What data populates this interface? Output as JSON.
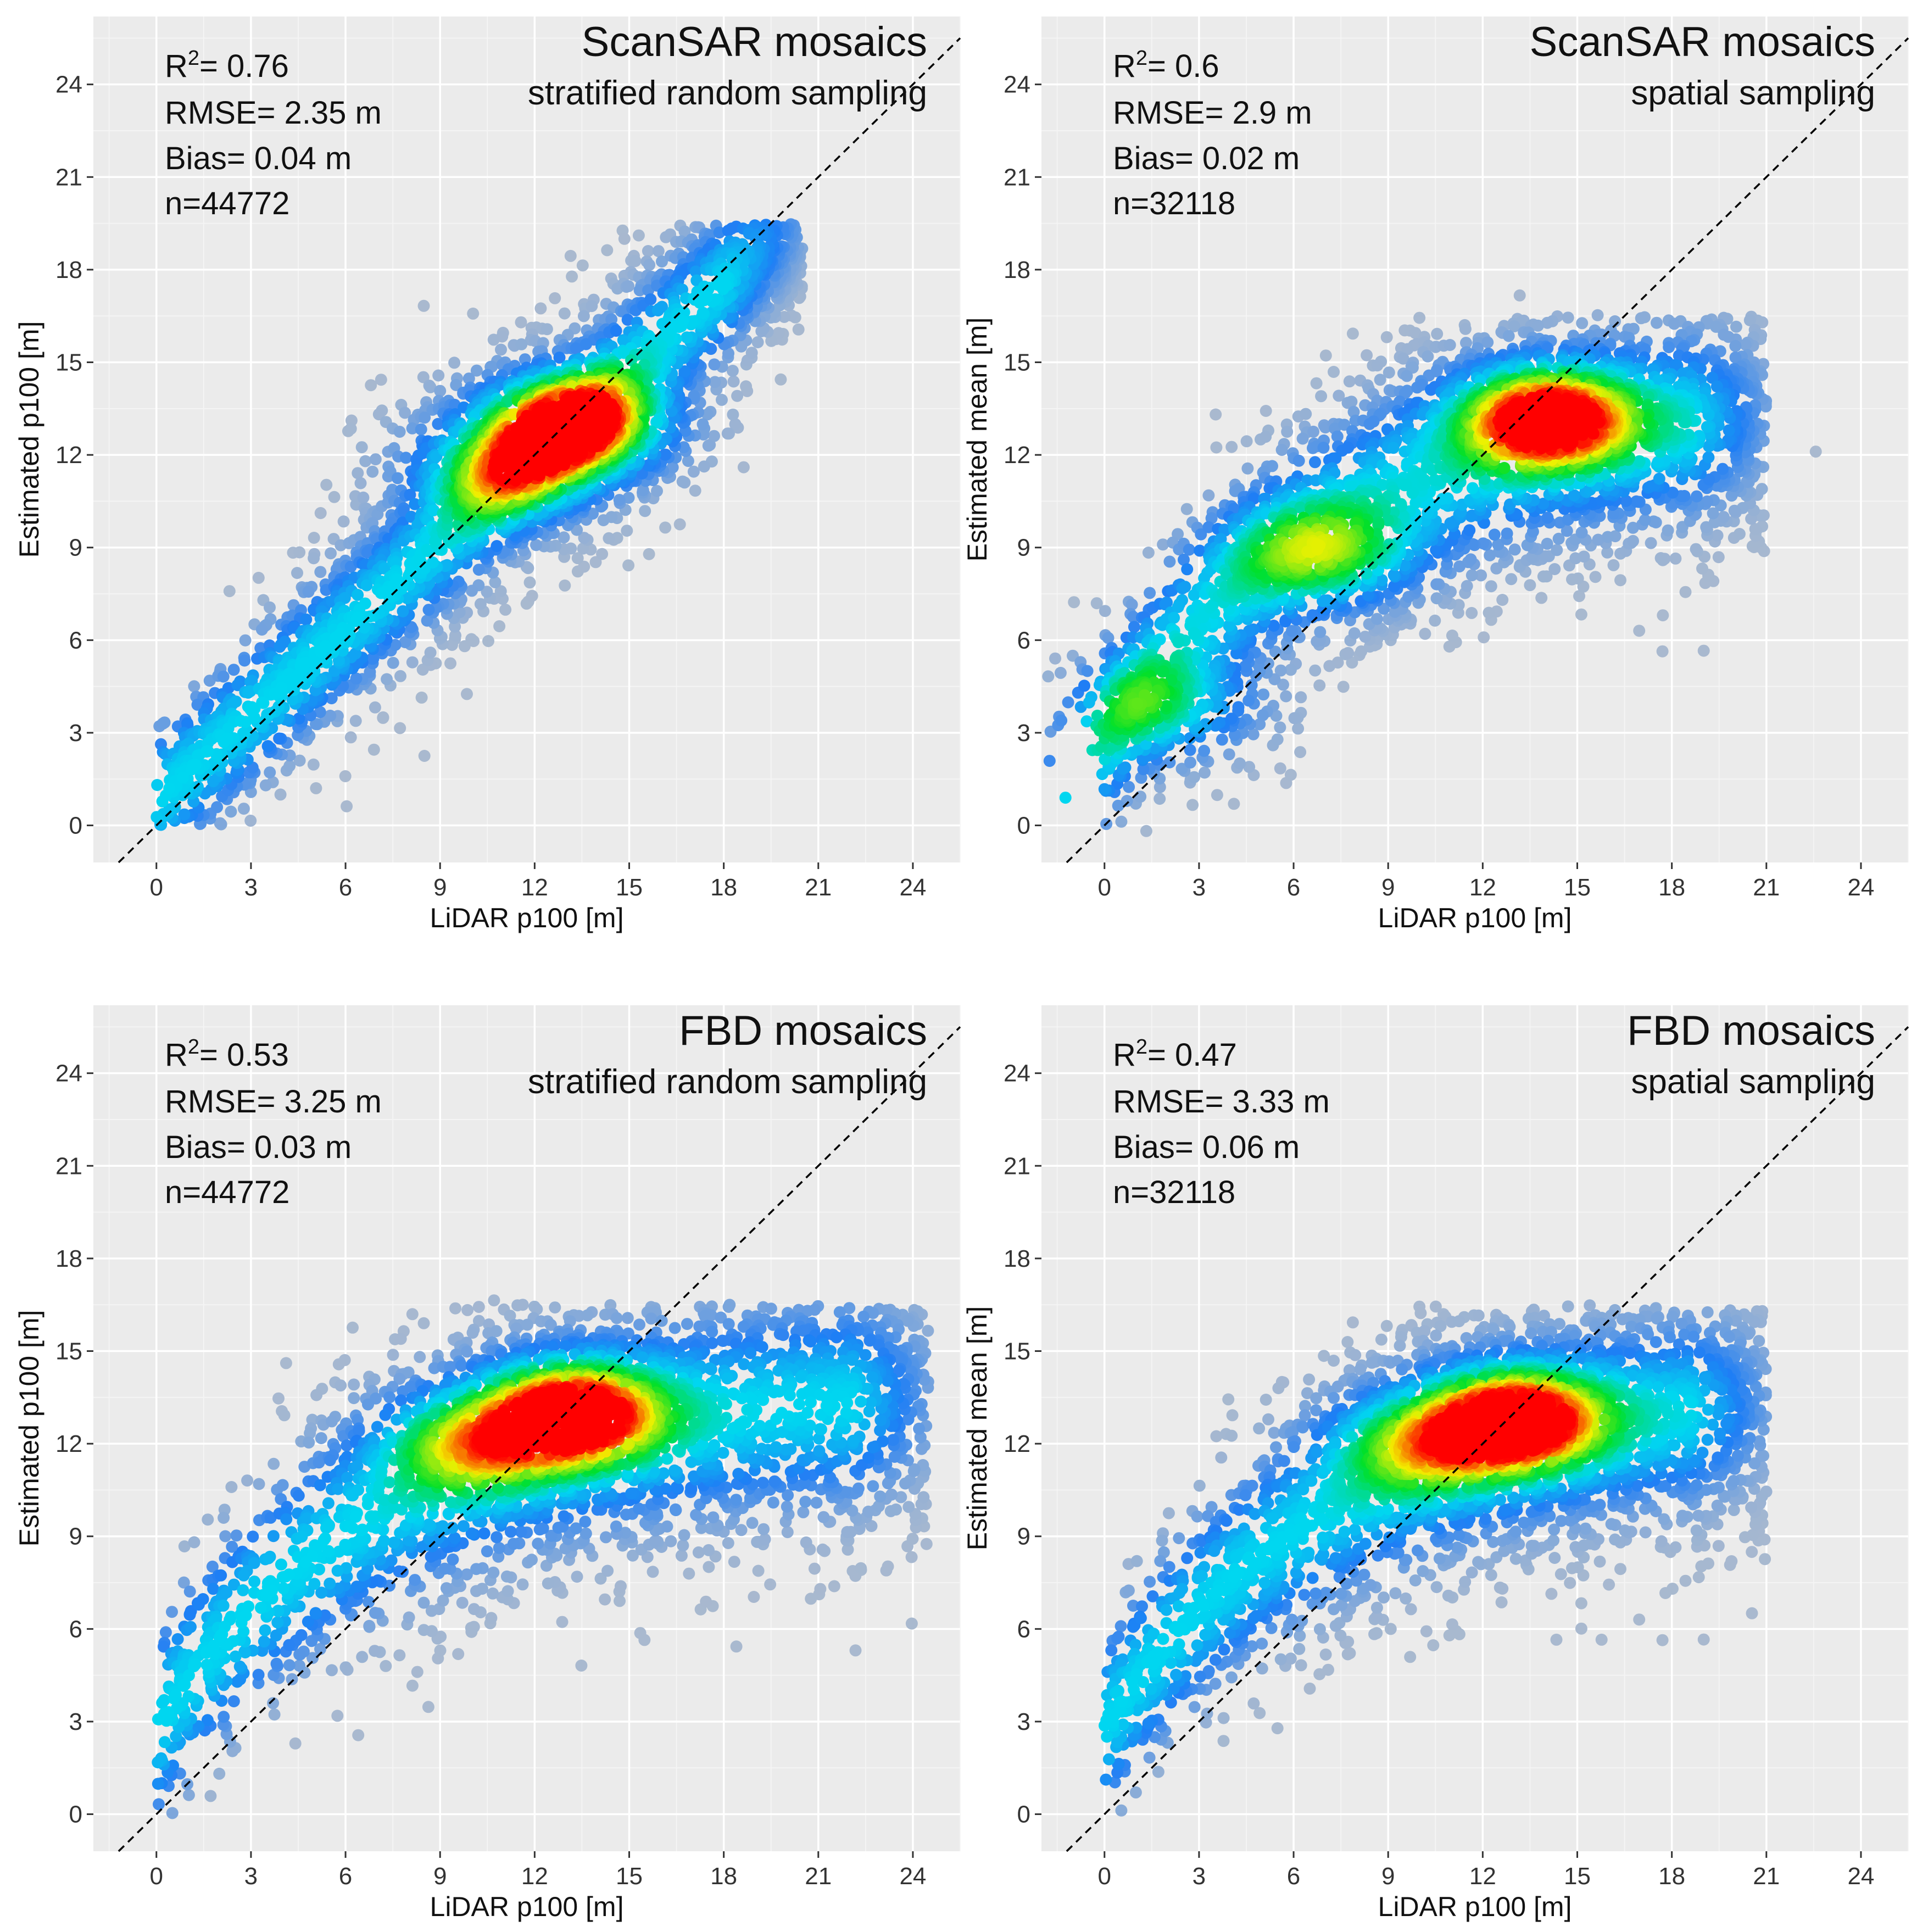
{
  "colors": {
    "panel_background": "#ebebeb",
    "grid": "#ffffff",
    "density_low": "#a9b9cf",
    "density_ramp": [
      "#a9b9cf",
      "#1e7ef5",
      "#00d7f0",
      "#00e02a",
      "#f1f100",
      "#ff0000"
    ],
    "reference_line": "#000000"
  },
  "chart_data": [
    {
      "type": "scatter",
      "title": "ScanSAR mosaics",
      "subtitle": "stratified random sampling",
      "xlabel": "LiDAR p100 [m]",
      "ylabel": "Estimated p100 [m]",
      "xlim": [
        -2,
        25.5
      ],
      "ylim": [
        -1.2,
        26.2
      ],
      "xticks": [
        "0",
        "3",
        "6",
        "9",
        "12",
        "15",
        "18",
        "21",
        "24"
      ],
      "yticks": [
        "0",
        "3",
        "6",
        "9",
        "12",
        "15",
        "18",
        "21",
        "24"
      ],
      "reference_line": "1:1",
      "stats": {
        "r2": "= 0.76",
        "rmse": "RMSE= 2.35 m",
        "bias": "Bias= 0.04 m",
        "n": "n=44772"
      },
      "density": {
        "mode": "linear",
        "slope": 0.93,
        "intercept": 0.8,
        "noise_sd": 1.9,
        "x_max": 20.5,
        "y_max": 19.5,
        "hotspots": [
          {
            "x": 13.2,
            "y": 13.0,
            "weight": 1.0
          },
          {
            "x": 11.0,
            "y": 11.5,
            "weight": 0.55
          }
        ]
      }
    },
    {
      "type": "scatter",
      "title": "ScanSAR mosaics",
      "subtitle": "spatial sampling",
      "xlabel": "LiDAR p100 [m]",
      "ylabel": "Estimated mean [m]",
      "xlim": [
        -2,
        25.5
      ],
      "ylim": [
        -1.2,
        26.2
      ],
      "xticks": [
        "0",
        "3",
        "6",
        "9",
        "12",
        "15",
        "18",
        "21",
        "24"
      ],
      "yticks": [
        "0",
        "3",
        "6",
        "9",
        "12",
        "15",
        "18",
        "21",
        "24"
      ],
      "reference_line": "1:1",
      "stats": {
        "r2": "= 0.6",
        "rmse": "RMSE= 2.9 m",
        "bias": "Bias= 0.02 m",
        "n": "n=32118"
      },
      "density": {
        "mode": "plateau",
        "noise_sd": 2.4,
        "x_max": 21.0,
        "y_max": 16.5,
        "hotspots": [
          {
            "x": 14.0,
            "y": 13.2,
            "weight": 1.0
          },
          {
            "x": 7.0,
            "y": 8.8,
            "weight": 0.45
          },
          {
            "x": 2.0,
            "y": 3.8,
            "weight": 0.35
          }
        ]
      }
    },
    {
      "type": "scatter",
      "title": "FBD mosaics",
      "subtitle": "stratified random sampling",
      "xlabel": "LiDAR p100 [m]",
      "ylabel": "Estimated p100 [m]",
      "xlim": [
        -2,
        25.5
      ],
      "ylim": [
        -1.2,
        26.2
      ],
      "xticks": [
        "0",
        "3",
        "6",
        "9",
        "12",
        "15",
        "18",
        "21",
        "24"
      ],
      "yticks": [
        "0",
        "3",
        "6",
        "9",
        "12",
        "15",
        "18",
        "21",
        "24"
      ],
      "reference_line": "1:1",
      "stats": {
        "r2": "= 0.53",
        "rmse": "RMSE= 3.25 m",
        "bias": "Bias= 0.03 m",
        "n": "n=44772"
      },
      "density": {
        "mode": "plateau",
        "noise_sd": 2.6,
        "x_max": 24.5,
        "y_max": 16.5,
        "hotspots": [
          {
            "x": 13.2,
            "y": 13.0,
            "weight": 1.0
          },
          {
            "x": 10.0,
            "y": 12.0,
            "weight": 0.5
          }
        ]
      }
    },
    {
      "type": "scatter",
      "title": "FBD mosaics",
      "subtitle": "spatial sampling",
      "xlabel": "LiDAR p100 [m]",
      "ylabel": "Estimated mean [m]",
      "xlim": [
        -2,
        25.5
      ],
      "ylim": [
        -1.2,
        26.2
      ],
      "xticks": [
        "0",
        "3",
        "6",
        "9",
        "12",
        "15",
        "18",
        "21",
        "24"
      ],
      "yticks": [
        "0",
        "3",
        "6",
        "9",
        "12",
        "15",
        "18",
        "21",
        "24"
      ],
      "reference_line": "1:1",
      "stats": {
        "r2": "= 0.47",
        "rmse": "RMSE= 3.33 m",
        "bias": "Bias= 0.06 m",
        "n": "n=32118"
      },
      "density": {
        "mode": "plateau",
        "noise_sd": 2.4,
        "x_max": 21.0,
        "y_max": 16.5,
        "hotspots": [
          {
            "x": 13.0,
            "y": 12.8,
            "weight": 1.0
          },
          {
            "x": 10.0,
            "y": 12.0,
            "weight": 0.45
          }
        ]
      }
    }
  ]
}
